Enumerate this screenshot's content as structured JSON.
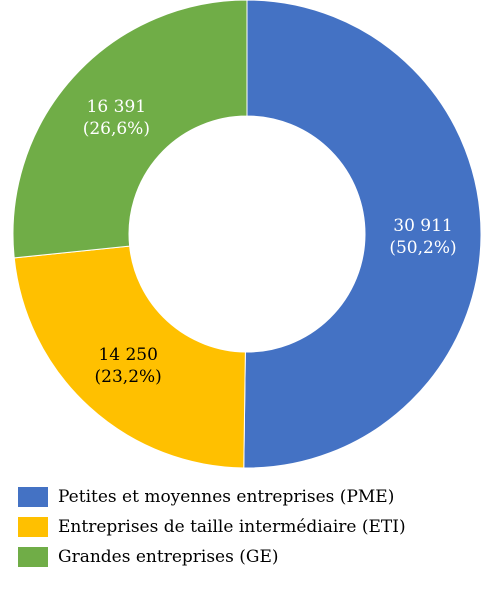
{
  "chart_data": {
    "type": "pie",
    "variant": "donut",
    "title": "",
    "slices": [
      {
        "label": "Petites et moyennes entreprises (PME)",
        "value": 30911,
        "value_label": "30 911",
        "percent_label": "(50,2%)",
        "color": "#4472C4",
        "text_color": "#ffffff"
      },
      {
        "label": "Entreprises de taille intermédiaire (ETI)",
        "value": 14250,
        "value_label": "14 250",
        "percent_label": "(23,2%)",
        "color": "#FFC000",
        "text_color": "#000000"
      },
      {
        "label": "Grandes entreprises (GE)",
        "value": 16391,
        "value_label": "16 391",
        "percent_label": "(26,6%)",
        "color": "#70AD47",
        "text_color": "#ffffff"
      }
    ],
    "start": "12 o'clock, clockwise",
    "legend_position": "bottom"
  },
  "legend": {
    "items": [
      {
        "label": "Petites et moyennes entreprises (PME)",
        "color": "#4472C4"
      },
      {
        "label": "Entreprises de taille intermédiaire (ETI)",
        "color": "#FFC000"
      },
      {
        "label": "Grandes entreprises (GE)",
        "color": "#70AD47"
      }
    ]
  }
}
